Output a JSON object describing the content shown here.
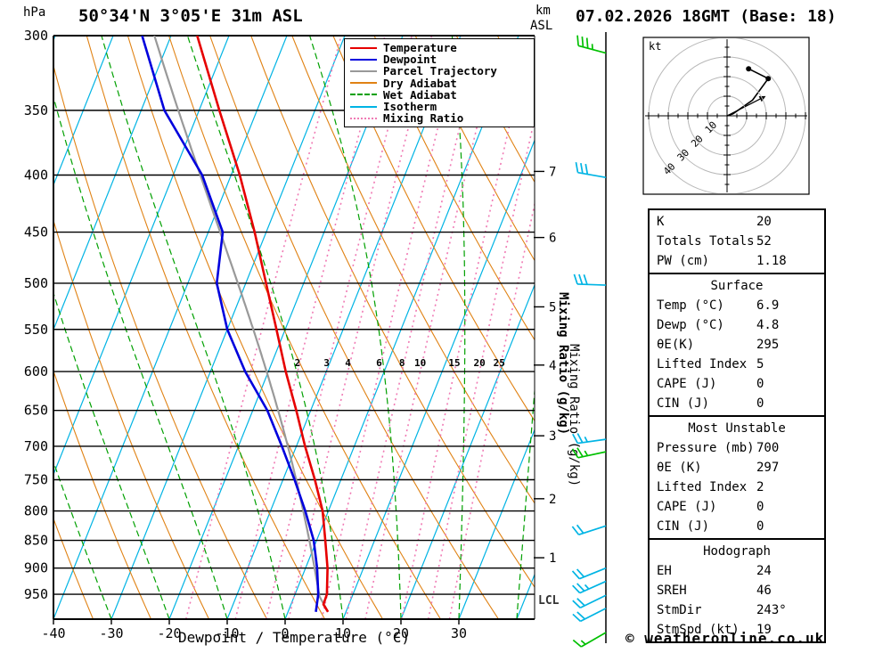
{
  "header": {
    "station_title": "50°34'N 3°05'E 31m ASL",
    "datetime_title": "07.02.2026 18GMT (Base: 18)",
    "pressure_unit": "hPa",
    "altitude_unit_line1": "km",
    "altitude_unit_line2": "ASL"
  },
  "axes": {
    "xlabel": "Dewpoint / Temperature (°C)",
    "x_ticks": [
      -40,
      -30,
      -20,
      -10,
      0,
      10,
      20,
      30
    ],
    "pressure_levels": [
      300,
      350,
      400,
      450,
      500,
      550,
      600,
      650,
      700,
      750,
      800,
      850,
      900,
      950
    ],
    "km_ticks": [
      {
        "label": "7",
        "p": 397
      },
      {
        "label": "6",
        "p": 455
      },
      {
        "label": "5",
        "p": 525
      },
      {
        "label": "4",
        "p": 592
      },
      {
        "label": "3",
        "p": 685
      },
      {
        "label": "2",
        "p": 780
      },
      {
        "label": "1",
        "p": 881
      }
    ],
    "lcl_label": "LCL",
    "mixing_axis_label": "Mixing Ratio (g/kg)"
  },
  "legend": {
    "items": [
      {
        "label": "Temperature",
        "key": "temperature",
        "line_style": "solid"
      },
      {
        "label": "Dewpoint",
        "key": "dewpoint",
        "line_style": "solid"
      },
      {
        "label": "Parcel Trajectory",
        "key": "parcel",
        "line_style": "solid"
      },
      {
        "label": "Dry Adiabat",
        "key": "dry_adiabat",
        "line_style": "solid"
      },
      {
        "label": "Wet Adiabat",
        "key": "wet_adiabat",
        "line_style": "dashed"
      },
      {
        "label": "Isotherm",
        "key": "isotherm",
        "line_style": "solid"
      },
      {
        "label": "Mixing Ratio",
        "key": "mixing_ratio",
        "line_style": "dotted"
      }
    ]
  },
  "colors": {
    "temperature": "#e60000",
    "dewpoint": "#0000dd",
    "parcel": "#999999",
    "dry_adiabat": "#e08214",
    "wet_adiabat": "#00a000",
    "isotherm": "#00b4e4",
    "mixing_ratio": "#f07ab4",
    "barb_cyan": "#00b4e4",
    "barb_green": "#00c000"
  },
  "chart_data": {
    "type": "skewt-log-p-sounding",
    "pressure_range_hpa": [
      300,
      1000
    ],
    "isotherm_step_c": 10,
    "dry_adiabats_theta_k": {
      "min": 230,
      "max": 450,
      "step": 10
    },
    "wet_adiabats_thetaw_c": {
      "min": -60,
      "max": 40,
      "step": 10
    },
    "mixing_ratio_lines": [
      1,
      2,
      3,
      4,
      6,
      8,
      10,
      15,
      20,
      25
    ],
    "mixing_ratio_labels": [
      {
        "w": 2,
        "text": "2"
      },
      {
        "w": 3,
        "text": "3"
      },
      {
        "w": 4,
        "text": "4"
      },
      {
        "w": 6,
        "text": "6"
      },
      {
        "w": 8,
        "text": "8"
      },
      {
        "w": 10,
        "text": "10"
      },
      {
        "w": 15,
        "text": "15"
      },
      {
        "w": 20,
        "text": "20"
      },
      {
        "w": 25,
        "text": "25"
      }
    ],
    "surface": {
      "temp_c": 6.9,
      "dewp_c": 4.8,
      "pressure_hpa": 985
    },
    "temperature_profile": [
      {
        "p": 300,
        "t": -55.5
      },
      {
        "p": 350,
        "t": -46.5
      },
      {
        "p": 400,
        "t": -38.5
      },
      {
        "p": 450,
        "t": -32
      },
      {
        "p": 500,
        "t": -26.5
      },
      {
        "p": 550,
        "t": -21.5
      },
      {
        "p": 600,
        "t": -17
      },
      {
        "p": 650,
        "t": -12.5
      },
      {
        "p": 700,
        "t": -8.5
      },
      {
        "p": 750,
        "t": -4.5
      },
      {
        "p": 800,
        "t": -1
      },
      {
        "p": 850,
        "t": 1.5
      },
      {
        "p": 900,
        "t": 3.8
      },
      {
        "p": 950,
        "t": 5.5
      },
      {
        "p": 970,
        "t": 5.6
      },
      {
        "p": 985,
        "t": 6.9
      }
    ],
    "dewpoint_profile": [
      {
        "p": 300,
        "t": -65
      },
      {
        "p": 350,
        "t": -56
      },
      {
        "p": 400,
        "t": -45
      },
      {
        "p": 450,
        "t": -37.5
      },
      {
        "p": 500,
        "t": -35
      },
      {
        "p": 550,
        "t": -30
      },
      {
        "p": 600,
        "t": -24
      },
      {
        "p": 650,
        "t": -17.5
      },
      {
        "p": 700,
        "t": -12.5
      },
      {
        "p": 750,
        "t": -8
      },
      {
        "p": 800,
        "t": -4
      },
      {
        "p": 850,
        "t": -0.5
      },
      {
        "p": 900,
        "t": 2
      },
      {
        "p": 950,
        "t": 4
      },
      {
        "p": 985,
        "t": 4.8
      }
    ],
    "lcl_pressure_hpa": 966,
    "wind_barbs": [
      {
        "p": 311,
        "speed_kt": 35,
        "dir_deg": 285,
        "color": "green"
      },
      {
        "p": 402,
        "speed_kt": 30,
        "dir_deg": 280,
        "color": "cyan"
      },
      {
        "p": 502,
        "speed_kt": 30,
        "dir_deg": 272,
        "color": "cyan"
      },
      {
        "p": 690,
        "speed_kt": 25,
        "dir_deg": 262,
        "color": "cyan"
      },
      {
        "p": 708,
        "speed_kt": 25,
        "dir_deg": 258,
        "color": "green"
      },
      {
        "p": 825,
        "speed_kt": 20,
        "dir_deg": 252,
        "color": "cyan"
      },
      {
        "p": 900,
        "speed_kt": 22,
        "dir_deg": 248,
        "color": "cyan"
      },
      {
        "p": 925,
        "speed_kt": 25,
        "dir_deg": 246,
        "color": "cyan"
      },
      {
        "p": 952,
        "speed_kt": 20,
        "dir_deg": 244,
        "color": "cyan"
      },
      {
        "p": 978,
        "speed_kt": 20,
        "dir_deg": 243,
        "color": "cyan"
      },
      {
        "p": 1010,
        "speed_kt": 15,
        "dir_deg": 240,
        "color": "green"
      }
    ],
    "hodograph": {
      "unit": "kt",
      "rings_kt": [
        10,
        20,
        30,
        40
      ],
      "trace_uv_kt": [
        [
          0,
          0
        ],
        [
          3,
          1
        ],
        [
          13,
          8
        ],
        [
          21,
          19
        ],
        [
          11,
          24
        ]
      ],
      "dot_uv_kt": [
        [
          21,
          19
        ],
        [
          11,
          24
        ]
      ],
      "storm_motion_uv_kt": [
        16.9,
        8.6
      ]
    }
  },
  "stats": {
    "tables": [
      {
        "rows": [
          [
            "K",
            "20"
          ],
          [
            "Totals Totals",
            "52"
          ],
          [
            "PW (cm)",
            "1.18"
          ]
        ]
      },
      {
        "header": "Surface",
        "rows": [
          [
            "Temp (°C)",
            "6.9"
          ],
          [
            "Dewp (°C)",
            "4.8"
          ],
          [
            "θE(K)",
            "295"
          ],
          [
            "Lifted Index",
            "5"
          ],
          [
            "CAPE (J)",
            "0"
          ],
          [
            "CIN (J)",
            "0"
          ]
        ]
      },
      {
        "header": "Most Unstable",
        "rows": [
          [
            "Pressure (mb)",
            "700"
          ],
          [
            "θE (K)",
            "297"
          ],
          [
            "Lifted Index",
            "2"
          ],
          [
            "CAPE (J)",
            "0"
          ],
          [
            "CIN (J)",
            "0"
          ]
        ]
      },
      {
        "header": "Hodograph",
        "rows": [
          [
            "EH",
            "24"
          ],
          [
            "SREH",
            "46"
          ],
          [
            "StmDir",
            "243°"
          ],
          [
            "StmSpd (kt)",
            "19"
          ]
        ]
      }
    ]
  },
  "footer": {
    "copyright": "© weatheronline.co.uk"
  }
}
